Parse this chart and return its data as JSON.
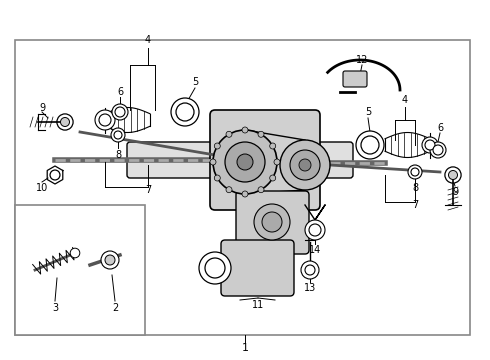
{
  "bg_color": "#ffffff",
  "line_color": "#000000",
  "text_color": "#000000",
  "fig_width": 4.9,
  "fig_height": 3.6,
  "dpi": 100
}
